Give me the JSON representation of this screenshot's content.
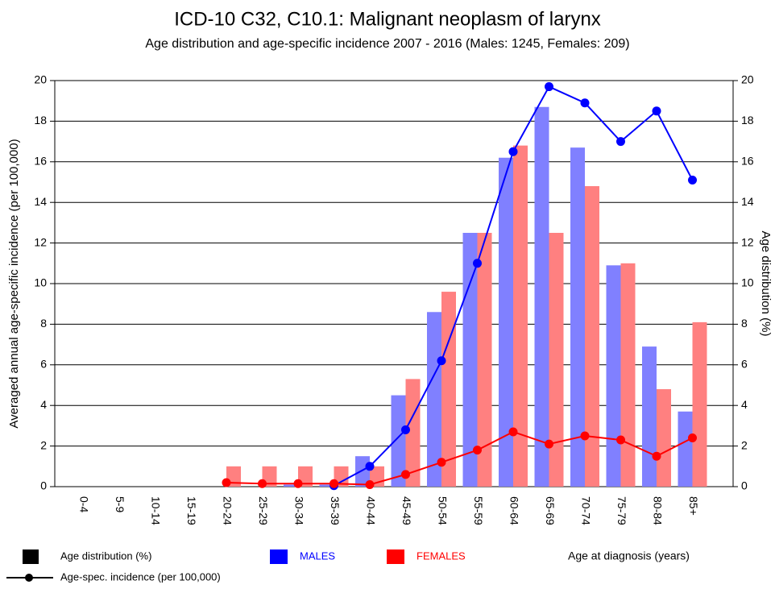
{
  "chart_data": {
    "type": "bar_line",
    "title": "ICD-10 C32, C10.1: Malignant neoplasm of larynx",
    "subtitle": "Age distribution and age-specific incidence 2007 - 2016 (Males: 1245, Females: 209)",
    "y_label": "Averaged annual age-specific incidence (per 100,000)",
    "y2_label": "Age distribution (%)",
    "x_label": "Age at diagnosis (years)",
    "bar_legend": "Age distribution (%)",
    "line_legend": "Age-spec. incidence (per 100,000)",
    "categories": [
      "0-4",
      "5-9",
      "10-14",
      "15-19",
      "20-24",
      "25-29",
      "30-34",
      "35-39",
      "40-44",
      "45-49",
      "50-54",
      "55-59",
      "60-64",
      "65-69",
      "70-74",
      "75-79",
      "80-84",
      "85+"
    ],
    "ylim": [
      0,
      20
    ],
    "yticks": [
      0,
      2,
      4,
      6,
      8,
      10,
      12,
      14,
      16,
      18,
      20
    ],
    "y2lim": [
      0,
      20
    ],
    "y2ticks": [
      0,
      2,
      4,
      6,
      8,
      10,
      12,
      14,
      16,
      18,
      20
    ],
    "grid": true,
    "groups": [
      {
        "name": "MALES",
        "color": "#0000ff",
        "bar_color": "#8080ff",
        "distribution": [
          0,
          0,
          0,
          0,
          0,
          0,
          0.1,
          0.1,
          1.5,
          4.5,
          8.6,
          12.5,
          16.2,
          18.7,
          16.7,
          10.9,
          6.9,
          3.7
        ],
        "incidence": [
          null,
          null,
          null,
          null,
          null,
          null,
          null,
          0.05,
          1.0,
          2.8,
          6.2,
          11.0,
          16.5,
          19.7,
          18.9,
          17.0,
          18.5,
          15.1
        ]
      },
      {
        "name": "FEMALES",
        "color": "#ff0000",
        "bar_color": "#ff8080",
        "distribution": [
          0,
          0,
          0,
          0,
          1.0,
          1.0,
          1.0,
          1.0,
          1.0,
          5.3,
          9.6,
          12.5,
          16.8,
          12.5,
          14.8,
          11.0,
          4.8,
          8.1
        ],
        "incidence": [
          null,
          null,
          null,
          null,
          0.2,
          0.15,
          0.15,
          0.15,
          0.1,
          0.6,
          1.2,
          1.8,
          2.7,
          2.1,
          2.5,
          2.3,
          1.5,
          2.4
        ]
      }
    ]
  }
}
